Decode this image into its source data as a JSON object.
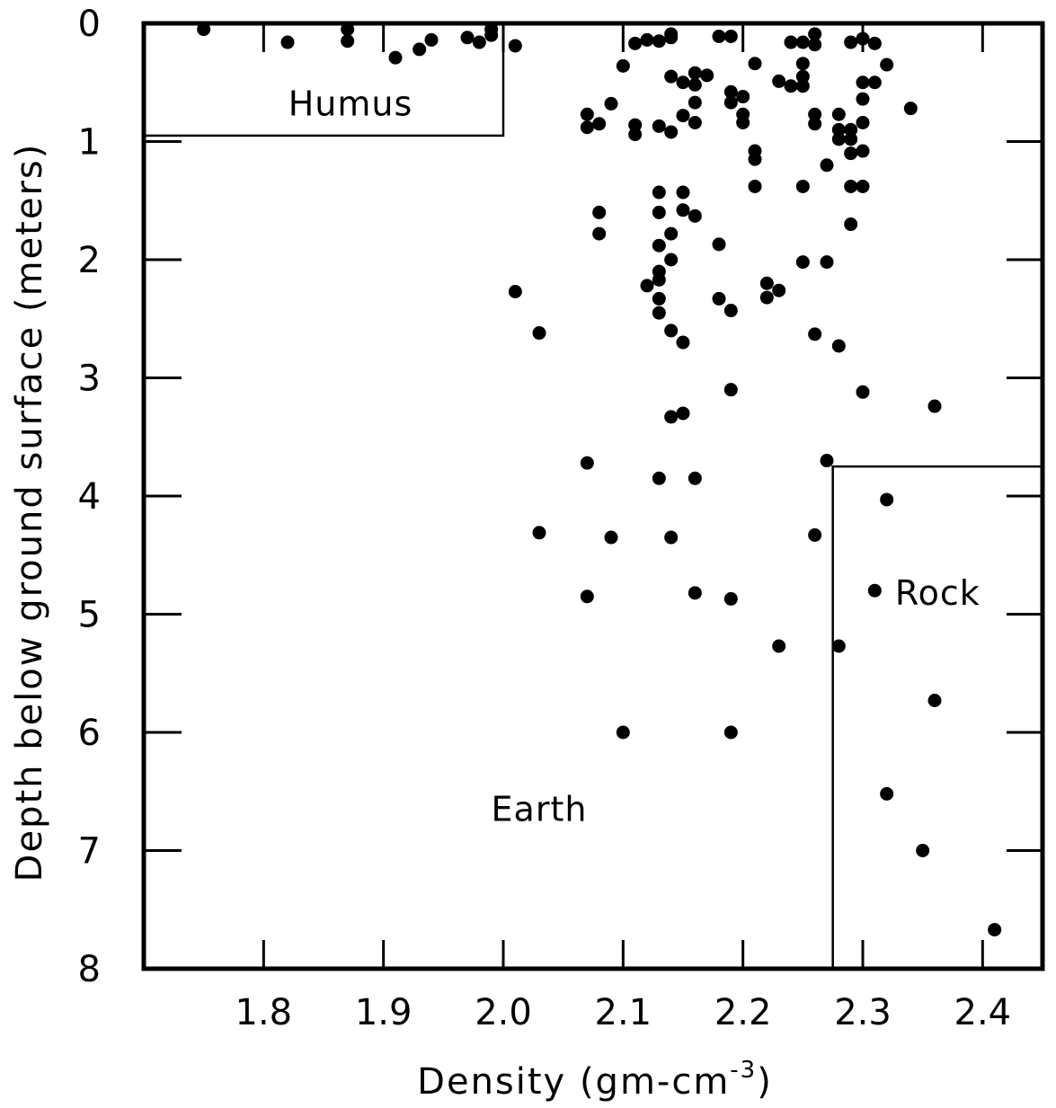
{
  "chart_data": {
    "type": "scatter",
    "xlabel": "Density (gm-cm",
    "xlabel_superscript": "-3",
    "xlabel_close": ")",
    "ylabel": "Depth below ground surface (meters)",
    "xlim": [
      1.7,
      2.45
    ],
    "ylim": [
      0,
      8
    ],
    "y_inverted": true,
    "x_ticks": [
      "1.8",
      "1.9",
      "2.0",
      "2.1",
      "2.2",
      "2.3",
      "2.4"
    ],
    "y_ticks": [
      "0",
      "1",
      "2",
      "3",
      "4",
      "5",
      "6",
      "7",
      "8"
    ],
    "grid": false,
    "legend": "none",
    "regions": [
      {
        "label": "Humus",
        "x_range": [
          1.7,
          2.0
        ],
        "y_range": [
          0,
          0.95
        ]
      },
      {
        "label": "Rock",
        "x_range": [
          2.275,
          2.45
        ],
        "y_range": [
          3.75,
          8
        ]
      },
      {
        "label": "Earth",
        "x_range": [
          1.7,
          2.45
        ],
        "y_range": [
          0,
          8
        ]
      }
    ],
    "point_color": "#000000",
    "points": [
      [
        1.75,
        0.05
      ],
      [
        1.82,
        0.16
      ],
      [
        1.87,
        0.15
      ],
      [
        1.87,
        0.05
      ],
      [
        1.91,
        0.29
      ],
      [
        1.93,
        0.22
      ],
      [
        1.94,
        0.14
      ],
      [
        1.97,
        0.12
      ],
      [
        1.98,
        0.16
      ],
      [
        1.99,
        0.1
      ],
      [
        1.99,
        0.05
      ],
      [
        2.01,
        0.19
      ],
      [
        2.07,
        0.77
      ],
      [
        2.07,
        0.88
      ],
      [
        2.08,
        0.85
      ],
      [
        2.09,
        0.68
      ],
      [
        2.1,
        0.36
      ],
      [
        2.11,
        0.17
      ],
      [
        2.11,
        0.86
      ],
      [
        2.11,
        0.94
      ],
      [
        2.12,
        0.14
      ],
      [
        2.13,
        0.15
      ],
      [
        2.13,
        0.87
      ],
      [
        2.14,
        0.09
      ],
      [
        2.14,
        0.12
      ],
      [
        2.14,
        0.92
      ],
      [
        2.14,
        0.45
      ],
      [
        2.15,
        0.5
      ],
      [
        2.15,
        0.78
      ],
      [
        2.16,
        0.84
      ],
      [
        2.16,
        0.52
      ],
      [
        2.16,
        0.67
      ],
      [
        2.16,
        0.42
      ],
      [
        2.17,
        0.44
      ],
      [
        2.18,
        0.11
      ],
      [
        2.19,
        0.67
      ],
      [
        2.19,
        0.11
      ],
      [
        2.19,
        0.58
      ],
      [
        2.2,
        0.77
      ],
      [
        2.2,
        0.84
      ],
      [
        2.2,
        0.62
      ],
      [
        2.21,
        0.34
      ],
      [
        2.23,
        0.49
      ],
      [
        2.24,
        0.53
      ],
      [
        2.24,
        0.16
      ],
      [
        2.25,
        0.16
      ],
      [
        2.25,
        0.53
      ],
      [
        2.25,
        0.34
      ],
      [
        2.25,
        0.45
      ],
      [
        2.26,
        0.18
      ],
      [
        2.26,
        0.09
      ],
      [
        2.26,
        0.77
      ],
      [
        2.26,
        0.85
      ],
      [
        2.28,
        0.77
      ],
      [
        2.28,
        0.9
      ],
      [
        2.28,
        0.98
      ],
      [
        2.29,
        0.9
      ],
      [
        2.3,
        0.64
      ],
      [
        2.29,
        0.16
      ],
      [
        2.3,
        0.5
      ],
      [
        2.3,
        0.13
      ],
      [
        2.31,
        0.17
      ],
      [
        2.31,
        0.5
      ],
      [
        2.3,
        0.84
      ],
      [
        2.29,
        1.1
      ],
      [
        2.29,
        0.98
      ],
      [
        2.3,
        1.08
      ],
      [
        2.3,
        1.38
      ],
      [
        2.21,
        1.08
      ],
      [
        2.21,
        1.15
      ],
      [
        2.21,
        1.38
      ],
      [
        2.25,
        1.38
      ],
      [
        2.27,
        1.2
      ],
      [
        2.29,
        1.38
      ],
      [
        2.29,
        1.7
      ],
      [
        2.13,
        1.43
      ],
      [
        2.13,
        1.6
      ],
      [
        2.15,
        1.43
      ],
      [
        2.15,
        1.58
      ],
      [
        2.16,
        1.63
      ],
      [
        2.08,
        1.6
      ],
      [
        2.08,
        1.78
      ],
      [
        2.14,
        1.78
      ],
      [
        2.13,
        1.88
      ],
      [
        2.18,
        1.87
      ],
      [
        2.01,
        2.27
      ],
      [
        2.12,
        2.22
      ],
      [
        2.13,
        2.1
      ],
      [
        2.13,
        2.17
      ],
      [
        2.13,
        2.33
      ],
      [
        2.14,
        2.0
      ],
      [
        2.18,
        2.33
      ],
      [
        2.22,
        2.2
      ],
      [
        2.22,
        2.32
      ],
      [
        2.23,
        2.26
      ],
      [
        2.25,
        2.02
      ],
      [
        2.27,
        2.02
      ],
      [
        2.19,
        2.43
      ],
      [
        2.13,
        2.45
      ],
      [
        2.14,
        2.6
      ],
      [
        2.03,
        2.62
      ],
      [
        2.15,
        2.7
      ],
      [
        2.26,
        2.63
      ],
      [
        2.28,
        2.73
      ],
      [
        2.19,
        3.1
      ],
      [
        2.3,
        3.12
      ],
      [
        2.36,
        3.24
      ],
      [
        2.14,
        3.33
      ],
      [
        2.15,
        3.3
      ],
      [
        2.07,
        3.72
      ],
      [
        2.13,
        3.85
      ],
      [
        2.16,
        3.85
      ],
      [
        2.27,
        3.7
      ],
      [
        2.03,
        4.31
      ],
      [
        2.09,
        4.35
      ],
      [
        2.14,
        4.35
      ],
      [
        2.26,
        4.33
      ],
      [
        2.07,
        4.85
      ],
      [
        2.16,
        4.82
      ],
      [
        2.19,
        4.87
      ],
      [
        2.31,
        4.8
      ],
      [
        2.23,
        5.27
      ],
      [
        2.28,
        5.27
      ],
      [
        2.1,
        6.0
      ],
      [
        2.19,
        6.0
      ],
      [
        2.32,
        0.35
      ],
      [
        2.34,
        0.72
      ],
      [
        2.32,
        4.03
      ],
      [
        2.36,
        5.73
      ],
      [
        2.32,
        6.52
      ],
      [
        2.35,
        7.0
      ],
      [
        2.41,
        7.67
      ]
    ]
  }
}
